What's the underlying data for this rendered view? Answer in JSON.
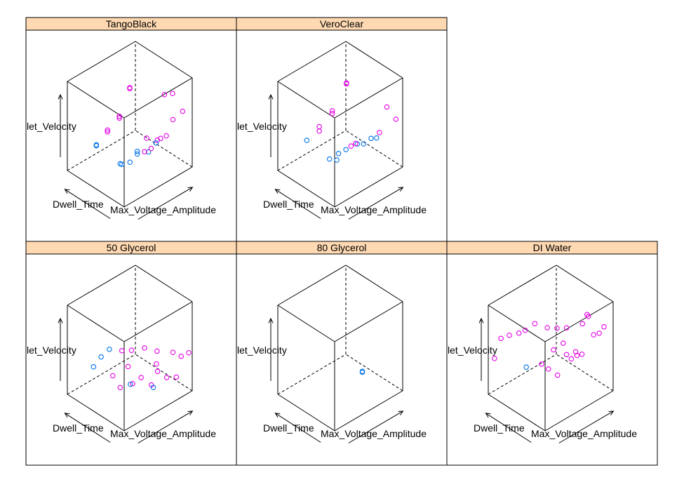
{
  "chart_data": {
    "type": "scatter",
    "plot_kind": "3d scatter (lattice cloud)",
    "axes": {
      "x": "Max_Voltage_Amplitude",
      "y": "Dwell_Time",
      "z": "let_Velocity"
    },
    "strip_color": "#ffd9b2",
    "series_colors": {
      "magenta": "#e600e6",
      "blue": "#0072e6"
    },
    "panels": [
      {
        "name": "TangoBlack",
        "points": [
          {
            "x": 0.5,
            "y": 0.5,
            "z": 0.9,
            "c": "magenta"
          },
          {
            "x": 0.5,
            "y": 0.5,
            "z": 0.91,
            "c": "magenta"
          },
          {
            "x": 0.28,
            "y": 0.42,
            "z": 0.72,
            "c": "magenta"
          },
          {
            "x": 0.28,
            "y": 0.42,
            "z": 0.7,
            "c": "magenta"
          },
          {
            "x": 0.13,
            "y": 0.45,
            "z": 0.62,
            "c": "magenta"
          },
          {
            "x": 0.13,
            "y": 0.45,
            "z": 0.6,
            "c": "magenta"
          },
          {
            "x": 0.05,
            "y": 0.55,
            "z": 0.45,
            "c": "blue"
          },
          {
            "x": 0.05,
            "y": 0.55,
            "z": 0.44,
            "c": "blue"
          },
          {
            "x": 0.77,
            "y": 0.07,
            "z": 0.9,
            "c": "magenta"
          },
          {
            "x": 0.8,
            "y": 0.25,
            "z": 0.8,
            "c": "magenta"
          },
          {
            "x": 0.9,
            "y": 0.05,
            "z": 0.65,
            "c": "magenta"
          },
          {
            "x": 0.8,
            "y": 0.1,
            "z": 0.58,
            "c": "magenta"
          },
          {
            "x": 0.62,
            "y": 0.0,
            "z": 0.52,
            "c": "magenta"
          },
          {
            "x": 0.52,
            "y": 0.04,
            "z": 0.5,
            "c": "magenta"
          },
          {
            "x": 0.43,
            "y": 0.12,
            "z": 0.53,
            "c": "magenta"
          },
          {
            "x": 0.62,
            "y": 0.1,
            "z": 0.45,
            "c": "magenta"
          },
          {
            "x": 0.55,
            "y": 0.1,
            "z": 0.43,
            "c": "blue"
          },
          {
            "x": 0.44,
            "y": 0.1,
            "z": 0.38,
            "c": "blue"
          },
          {
            "x": 0.48,
            "y": 0.1,
            "z": 0.4,
            "c": "magenta"
          },
          {
            "x": 0.36,
            "y": 0.2,
            "z": 0.38,
            "c": "blue"
          },
          {
            "x": 0.36,
            "y": 0.2,
            "z": 0.35,
            "c": "blue"
          },
          {
            "x": 0.55,
            "y": 0.3,
            "z": 0.25,
            "c": "magenta"
          },
          {
            "x": 0.42,
            "y": 0.4,
            "z": 0.15,
            "c": "blue"
          },
          {
            "x": 0.3,
            "y": 0.4,
            "z": 0.18,
            "c": "blue"
          },
          {
            "x": 0.4,
            "y": 0.55,
            "z": 0.08,
            "c": "blue"
          }
        ]
      },
      {
        "name": "VeroClear",
        "points": [
          {
            "x": 0.55,
            "y": 0.45,
            "z": 0.95,
            "c": "magenta"
          },
          {
            "x": 0.55,
            "y": 0.45,
            "z": 0.96,
            "c": "magenta"
          },
          {
            "x": 0.3,
            "y": 0.4,
            "z": 0.78,
            "c": "magenta"
          },
          {
            "x": 0.3,
            "y": 0.4,
            "z": 0.75,
            "c": "magenta"
          },
          {
            "x": 0.15,
            "y": 0.45,
            "z": 0.65,
            "c": "magenta"
          },
          {
            "x": 0.15,
            "y": 0.45,
            "z": 0.6,
            "c": "magenta"
          },
          {
            "x": 0.05,
            "y": 0.55,
            "z": 0.5,
            "c": "blue"
          },
          {
            "x": 0.85,
            "y": 0.1,
            "z": 0.7,
            "c": "magenta"
          },
          {
            "x": 0.9,
            "y": 0.0,
            "z": 0.58,
            "c": "magenta"
          },
          {
            "x": 0.7,
            "y": 0.05,
            "z": 0.5,
            "c": "magenta"
          },
          {
            "x": 0.62,
            "y": 0.1,
            "z": 0.45,
            "c": "blue"
          },
          {
            "x": 0.7,
            "y": 0.1,
            "z": 0.42,
            "c": "blue"
          },
          {
            "x": 0.55,
            "y": 0.15,
            "z": 0.4,
            "c": "blue"
          },
          {
            "x": 0.5,
            "y": 0.2,
            "z": 0.4,
            "c": "blue"
          },
          {
            "x": 0.45,
            "y": 0.25,
            "z": 0.38,
            "c": "magenta"
          },
          {
            "x": 0.4,
            "y": 0.28,
            "z": 0.35,
            "c": "blue"
          },
          {
            "x": 0.6,
            "y": 0.35,
            "z": 0.3,
            "c": "magenta"
          },
          {
            "x": 0.35,
            "y": 0.35,
            "z": 0.3,
            "c": "blue"
          },
          {
            "x": 0.3,
            "y": 0.45,
            "z": 0.22,
            "c": "blue"
          },
          {
            "x": 0.45,
            "y": 0.5,
            "z": 0.12,
            "c": "blue"
          }
        ]
      },
      {
        "name": "50 Glycerol",
        "points": [
          {
            "x": 0.2,
            "y": 0.5,
            "z": 0.62,
            "c": "blue"
          },
          {
            "x": 0.12,
            "y": 0.55,
            "z": 0.55,
            "c": "blue"
          },
          {
            "x": 0.05,
            "y": 0.6,
            "z": 0.45,
            "c": "blue"
          },
          {
            "x": 0.3,
            "y": 0.4,
            "z": 0.6,
            "c": "magenta"
          },
          {
            "x": 0.4,
            "y": 0.35,
            "z": 0.58,
            "c": "magenta"
          },
          {
            "x": 0.55,
            "y": 0.3,
            "z": 0.56,
            "c": "magenta"
          },
          {
            "x": 0.65,
            "y": 0.2,
            "z": 0.52,
            "c": "magenta"
          },
          {
            "x": 0.8,
            "y": 0.1,
            "z": 0.48,
            "c": "magenta"
          },
          {
            "x": 0.95,
            "y": 0.0,
            "z": 0.45,
            "c": "magenta"
          },
          {
            "x": 0.88,
            "y": 0.05,
            "z": 0.42,
            "c": "magenta"
          },
          {
            "x": 0.6,
            "y": 0.15,
            "z": 0.42,
            "c": "magenta"
          },
          {
            "x": 0.35,
            "y": 0.35,
            "z": 0.42,
            "c": "magenta"
          },
          {
            "x": 0.25,
            "y": 0.5,
            "z": 0.3,
            "c": "magenta"
          },
          {
            "x": 0.5,
            "y": 0.3,
            "z": 0.25,
            "c": "magenta"
          },
          {
            "x": 0.7,
            "y": 0.25,
            "z": 0.25,
            "c": "magenta"
          },
          {
            "x": 0.75,
            "y": 0.15,
            "z": 0.2,
            "c": "magenta"
          },
          {
            "x": 0.85,
            "y": 0.1,
            "z": 0.18,
            "c": "magenta"
          },
          {
            "x": 0.5,
            "y": 0.45,
            "z": 0.12,
            "c": "magenta"
          },
          {
            "x": 0.65,
            "y": 0.3,
            "z": 0.1,
            "c": "magenta"
          },
          {
            "x": 0.72,
            "y": 0.35,
            "z": 0.02,
            "c": "blue"
          },
          {
            "x": 0.55,
            "y": 0.55,
            "z": 0.05,
            "c": "blue"
          },
          {
            "x": 0.4,
            "y": 0.55,
            "z": 0.08,
            "c": "magenta"
          }
        ]
      },
      {
        "name": "80 Glycerol",
        "points": [
          {
            "x": 0.7,
            "y": 0.35,
            "z": 0.2,
            "c": "blue"
          },
          {
            "x": 0.7,
            "y": 0.35,
            "z": 0.21,
            "c": "blue"
          }
        ]
      },
      {
        "name": "DI Water",
        "points": [
          {
            "x": 0.7,
            "y": 0.1,
            "z": 0.95,
            "c": "magenta"
          },
          {
            "x": 0.72,
            "y": 0.1,
            "z": 0.92,
            "c": "magenta"
          },
          {
            "x": 0.35,
            "y": 0.6,
            "z": 0.8,
            "c": "magenta"
          },
          {
            "x": 0.25,
            "y": 0.65,
            "z": 0.75,
            "c": "magenta"
          },
          {
            "x": 0.2,
            "y": 0.7,
            "z": 0.72,
            "c": "magenta"
          },
          {
            "x": 0.1,
            "y": 0.75,
            "z": 0.72,
            "c": "magenta"
          },
          {
            "x": 0.02,
            "y": 0.8,
            "z": 0.7,
            "c": "magenta"
          },
          {
            "x": 0.45,
            "y": 0.5,
            "z": 0.75,
            "c": "magenta"
          },
          {
            "x": 0.55,
            "y": 0.45,
            "z": 0.72,
            "c": "magenta"
          },
          {
            "x": 0.65,
            "y": 0.4,
            "z": 0.7,
            "c": "magenta"
          },
          {
            "x": 0.8,
            "y": 0.3,
            "z": 0.72,
            "c": "magenta"
          },
          {
            "x": 0.95,
            "y": 0.1,
            "z": 0.7,
            "c": "magenta"
          },
          {
            "x": 0.92,
            "y": 0.15,
            "z": 0.62,
            "c": "magenta"
          },
          {
            "x": 0.88,
            "y": 0.2,
            "z": 0.6,
            "c": "magenta"
          },
          {
            "x": 0.6,
            "y": 0.4,
            "z": 0.55,
            "c": "magenta"
          },
          {
            "x": 0.5,
            "y": 0.45,
            "z": 0.5,
            "c": "magenta"
          },
          {
            "x": 0.7,
            "y": 0.3,
            "z": 0.45,
            "c": "magenta"
          },
          {
            "x": 0.75,
            "y": 0.25,
            "z": 0.42,
            "c": "magenta"
          },
          {
            "x": 0.65,
            "y": 0.4,
            "z": 0.4,
            "c": "magenta"
          },
          {
            "x": 0.72,
            "y": 0.3,
            "z": 0.4,
            "c": "magenta"
          },
          {
            "x": 0.72,
            "y": 0.4,
            "z": 0.32,
            "c": "magenta"
          },
          {
            "x": 0.45,
            "y": 0.6,
            "z": 0.3,
            "c": "magenta"
          },
          {
            "x": 0.35,
            "y": 0.75,
            "z": 0.25,
            "c": "blue"
          },
          {
            "x": 0.55,
            "y": 0.6,
            "z": 0.2,
            "c": "magenta"
          },
          {
            "x": 0.6,
            "y": 0.5,
            "z": 0.15,
            "c": "magenta"
          },
          {
            "x": 0.05,
            "y": 0.95,
            "z": 0.4,
            "c": "magenta"
          }
        ]
      }
    ]
  }
}
